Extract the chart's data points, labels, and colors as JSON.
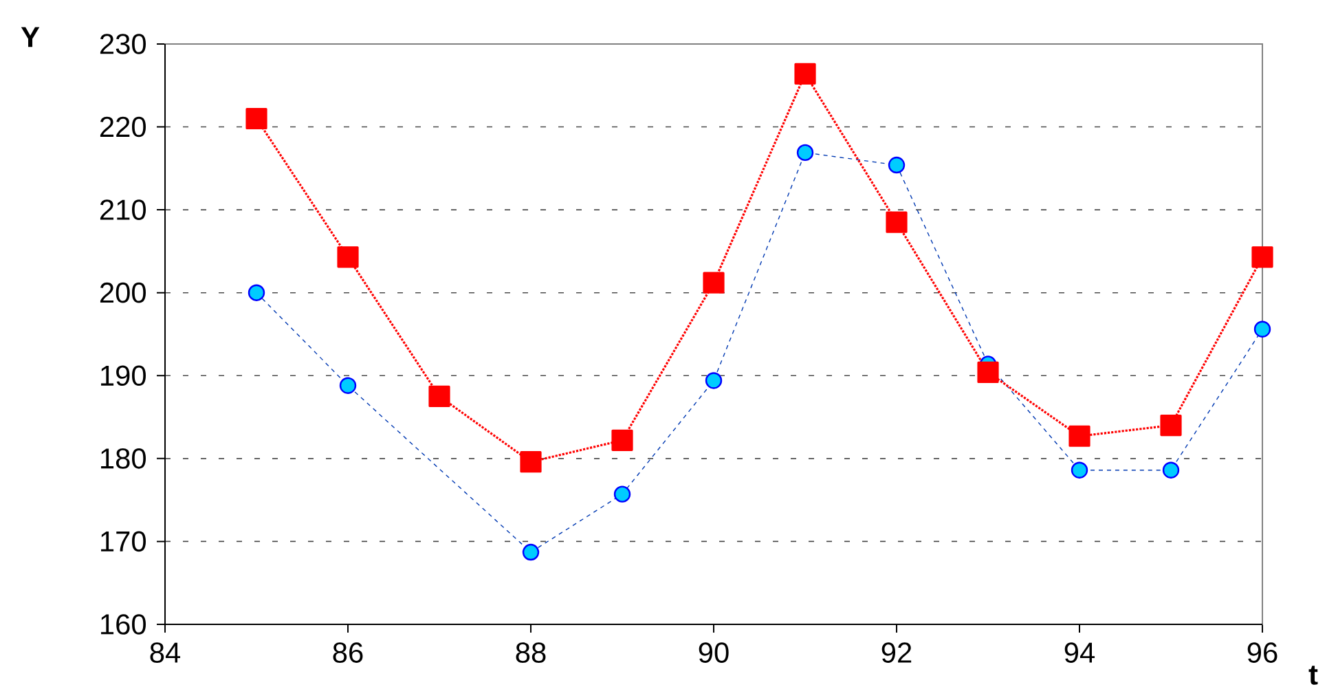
{
  "chart_data": {
    "type": "line",
    "xlabel": "t",
    "ylabel": "Y",
    "x": [
      85,
      86,
      87,
      88,
      89,
      90,
      91,
      92,
      93,
      94,
      95,
      96
    ],
    "series": [
      {
        "color": "#00ccff",
        "marker": "circle",
        "line_style": "dashed",
        "values": [
          200,
          188.8,
          null,
          168.7,
          175.7,
          189.4,
          216.9,
          215.4,
          191.4,
          178.6,
          178.6,
          195.6
        ]
      },
      {
        "color": "#ff0000",
        "marker": "square",
        "line_style": "dotted",
        "values": [
          221,
          204.3,
          187.5,
          179.6,
          182.2,
          201.2,
          226.4,
          208.5,
          190.4,
          182.7,
          184,
          204.3
        ]
      }
    ],
    "xlim": [
      84,
      96
    ],
    "xticks": [
      84,
      86,
      88,
      90,
      92,
      94,
      96
    ],
    "ylim": [
      160,
      230
    ],
    "yticks": [
      160,
      170,
      180,
      190,
      200,
      210,
      220,
      230
    ],
    "grid": "y"
  }
}
